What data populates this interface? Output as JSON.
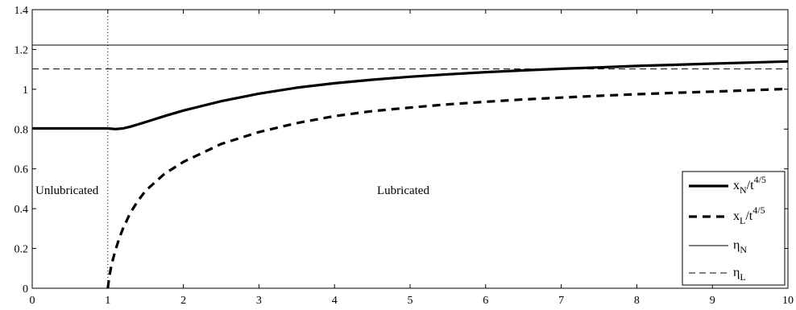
{
  "chart_data": {
    "type": "line",
    "xlim": [
      0,
      10
    ],
    "ylim": [
      0,
      1.4
    ],
    "x_ticks": [
      "0",
      "1",
      "2",
      "3",
      "4",
      "5",
      "6",
      "7",
      "8",
      "9",
      "10"
    ],
    "y_ticks": [
      "0",
      "0.2",
      "0.4",
      "0.6",
      "0.8",
      "1",
      "1.2",
      "1.4"
    ],
    "grid": false,
    "legend_position": "bottom-right",
    "legend": [
      {
        "base": "x",
        "sub": "N",
        "rest": "/t",
        "sup": "4/5"
      },
      {
        "base": "x",
        "sub": "L",
        "rest": "/t",
        "sup": "4/5"
      },
      {
        "base": "η",
        "sub": "N",
        "rest": "",
        "sup": ""
      },
      {
        "base": "η",
        "sub": "L",
        "rest": "",
        "sup": ""
      }
    ],
    "annotations": {
      "region_left": "Unlubricated",
      "region_right": "Lubricated"
    },
    "vertical_line_x": 1,
    "series": [
      {
        "style": "solid-thick",
        "x": [
          0,
          0.5,
          1.0,
          1.1,
          1.2,
          1.3,
          1.5,
          1.75,
          2,
          2.5,
          3,
          3.5,
          4,
          4.5,
          5,
          5.5,
          6,
          6.5,
          7,
          7.5,
          8,
          8.5,
          9,
          9.5,
          10
        ],
        "y": [
          0.803,
          0.803,
          0.803,
          0.8,
          0.803,
          0.812,
          0.835,
          0.865,
          0.893,
          0.94,
          0.978,
          1.008,
          1.03,
          1.048,
          1.063,
          1.075,
          1.086,
          1.095,
          1.103,
          1.11,
          1.117,
          1.123,
          1.129,
          1.134,
          1.14
        ]
      },
      {
        "style": "dashed-thick",
        "x": [
          1.0,
          1.02,
          1.05,
          1.1,
          1.15,
          1.2,
          1.3,
          1.4,
          1.5,
          1.75,
          2,
          2.5,
          3,
          3.5,
          4,
          4.5,
          5,
          5.5,
          6,
          6.5,
          7,
          7.5,
          8,
          8.5,
          9,
          9.5,
          10
        ],
        "y": [
          0,
          0.06,
          0.12,
          0.19,
          0.25,
          0.3,
          0.38,
          0.44,
          0.49,
          0.575,
          0.635,
          0.725,
          0.785,
          0.83,
          0.865,
          0.89,
          0.908,
          0.924,
          0.937,
          0.949,
          0.958,
          0.967,
          0.975,
          0.982,
          0.988,
          0.995,
          1.002
        ]
      },
      {
        "style": "solid-thin",
        "x": [
          0,
          10
        ],
        "y": [
          1.222,
          1.222
        ]
      },
      {
        "style": "dashed-thin",
        "x": [
          0,
          10
        ],
        "y": [
          1.102,
          1.102
        ]
      }
    ]
  }
}
